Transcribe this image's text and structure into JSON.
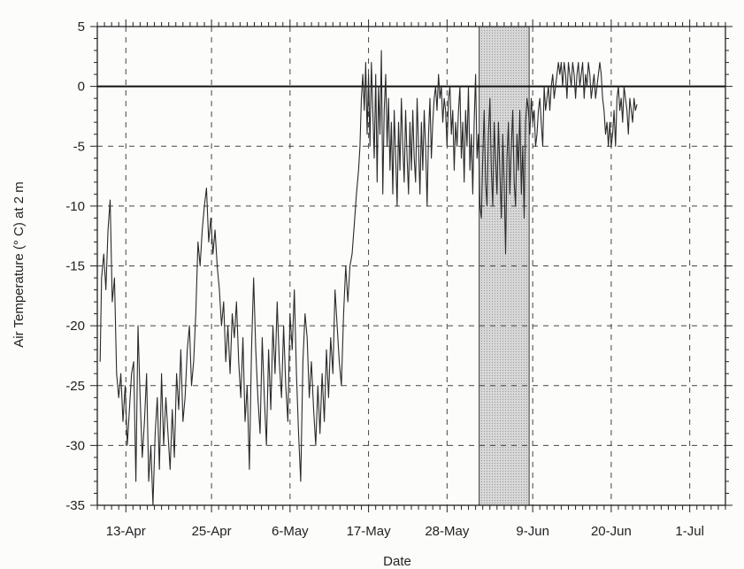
{
  "chart_data": {
    "type": "line",
    "xlabel": "Date",
    "ylabel": "Air Temperature (° C) at 2 m",
    "ylim": [
      -35,
      5
    ],
    "xlim_days": [
      -4,
      84
    ],
    "x_ticks": [
      {
        "day": 0,
        "label": "13-Apr"
      },
      {
        "day": 12,
        "label": "25-Apr"
      },
      {
        "day": 23,
        "label": "6-May"
      },
      {
        "day": 34,
        "label": "17-May"
      },
      {
        "day": 45,
        "label": "28-May"
      },
      {
        "day": 57,
        "label": "9-Jun"
      },
      {
        "day": 68,
        "label": "20-Jun"
      },
      {
        "day": 79,
        "label": "1-Jul"
      }
    ],
    "y_ticks": [
      {
        "value": 5,
        "label": "5"
      },
      {
        "value": 0,
        "label": "0"
      },
      {
        "value": -5,
        "label": "-5"
      },
      {
        "value": -10,
        "label": "-10"
      },
      {
        "value": -15,
        "label": "-15"
      },
      {
        "value": -20,
        "label": "-20"
      },
      {
        "value": -25,
        "label": "-25"
      },
      {
        "value": -30,
        "label": "-30"
      },
      {
        "value": -35,
        "label": "-35"
      }
    ],
    "grid": "dashed",
    "zero_line": true,
    "shaded_interval_days": [
      49.5,
      56.5
    ],
    "series": [
      {
        "values": [
          [
            -3.6,
            -23
          ],
          [
            -3.4,
            -16
          ],
          [
            -3.1,
            -14
          ],
          [
            -2.8,
            -17
          ],
          [
            -2.5,
            -12
          ],
          [
            -2.2,
            -9.5
          ],
          [
            -1.9,
            -18
          ],
          [
            -1.6,
            -16
          ],
          [
            -1.3,
            -24
          ],
          [
            -1.0,
            -26
          ],
          [
            -0.7,
            -24
          ],
          [
            -0.4,
            -28
          ],
          [
            -0.1,
            -25
          ],
          [
            0.2,
            -30
          ],
          [
            0.5,
            -27
          ],
          [
            0.8,
            -24
          ],
          [
            1.1,
            -23
          ],
          [
            1.4,
            -33
          ],
          [
            1.7,
            -20
          ],
          [
            2.0,
            -26
          ],
          [
            2.3,
            -31
          ],
          [
            2.6,
            -28
          ],
          [
            2.9,
            -24
          ],
          [
            3.2,
            -33
          ],
          [
            3.5,
            -30
          ],
          [
            3.8,
            -35
          ],
          [
            4.1,
            -29
          ],
          [
            4.4,
            -26
          ],
          [
            4.7,
            -32
          ],
          [
            5.0,
            -24
          ],
          [
            5.3,
            -30
          ],
          [
            5.6,
            -26
          ],
          [
            5.9,
            -29
          ],
          [
            6.2,
            -32
          ],
          [
            6.5,
            -27
          ],
          [
            6.8,
            -31
          ],
          [
            7.1,
            -24
          ],
          [
            7.4,
            -27
          ],
          [
            7.7,
            -22
          ],
          [
            8.0,
            -28
          ],
          [
            8.3,
            -26
          ],
          [
            8.6,
            -22
          ],
          [
            8.9,
            -20
          ],
          [
            9.2,
            -25
          ],
          [
            9.5,
            -23
          ],
          [
            9.8,
            -19
          ],
          [
            10.1,
            -13
          ],
          [
            10.4,
            -15
          ],
          [
            10.7,
            -12
          ],
          [
            11.0,
            -10
          ],
          [
            11.3,
            -8.5
          ],
          [
            11.6,
            -13
          ],
          [
            11.9,
            -11
          ],
          [
            12.2,
            -14
          ],
          [
            12.5,
            -12
          ],
          [
            12.8,
            -15
          ],
          [
            13.1,
            -17
          ],
          [
            13.4,
            -20
          ],
          [
            13.7,
            -18
          ],
          [
            14.0,
            -23
          ],
          [
            14.3,
            -20
          ],
          [
            14.6,
            -24
          ],
          [
            14.9,
            -19
          ],
          [
            15.2,
            -21
          ],
          [
            15.5,
            -18
          ],
          [
            15.8,
            -23
          ],
          [
            16.1,
            -26
          ],
          [
            16.4,
            -21
          ],
          [
            16.7,
            -28
          ],
          [
            17.0,
            -25
          ],
          [
            17.3,
            -32
          ],
          [
            17.6,
            -22
          ],
          [
            17.9,
            -16
          ],
          [
            18.2,
            -22
          ],
          [
            18.5,
            -26
          ],
          [
            18.8,
            -29
          ],
          [
            19.1,
            -21
          ],
          [
            19.4,
            -26
          ],
          [
            19.7,
            -30
          ],
          [
            20.0,
            -22
          ],
          [
            20.3,
            -27
          ],
          [
            20.6,
            -20
          ],
          [
            20.9,
            -24
          ],
          [
            21.2,
            -18
          ],
          [
            21.5,
            -23
          ],
          [
            21.8,
            -26
          ],
          [
            22.1,
            -20
          ],
          [
            22.4,
            -25
          ],
          [
            22.7,
            -28
          ],
          [
            23.0,
            -19
          ],
          [
            23.3,
            -22
          ],
          [
            23.6,
            -17
          ],
          [
            23.9,
            -24
          ],
          [
            24.2,
            -29
          ],
          [
            24.5,
            -33
          ],
          [
            24.8,
            -23
          ],
          [
            25.1,
            -19
          ],
          [
            25.4,
            -21
          ],
          [
            25.7,
            -26
          ],
          [
            26.0,
            -23
          ],
          [
            26.3,
            -27
          ],
          [
            26.6,
            -30
          ],
          [
            26.9,
            -25
          ],
          [
            27.2,
            -29
          ],
          [
            27.5,
            -24
          ],
          [
            27.8,
            -28
          ],
          [
            28.1,
            -22
          ],
          [
            28.4,
            -26
          ],
          [
            28.7,
            -21
          ],
          [
            29.0,
            -24
          ],
          [
            29.3,
            -17
          ],
          [
            29.6,
            -20
          ],
          [
            29.9,
            -23
          ],
          [
            30.2,
            -25
          ],
          [
            30.5,
            -19
          ],
          [
            30.8,
            -15
          ],
          [
            31.1,
            -18
          ],
          [
            31.4,
            -15
          ],
          [
            31.7,
            -14
          ],
          [
            32.0,
            -11.5
          ],
          [
            32.3,
            -9
          ],
          [
            32.6,
            -7
          ],
          [
            32.8,
            -5
          ],
          [
            33.0,
            -1
          ],
          [
            33.2,
            1
          ],
          [
            33.4,
            -2
          ],
          [
            33.6,
            2
          ],
          [
            33.8,
            -4
          ],
          [
            34.0,
            1
          ],
          [
            34.2,
            -5
          ],
          [
            34.4,
            2
          ],
          [
            34.6,
            -2
          ],
          [
            34.8,
            -6
          ],
          [
            35.0,
            1
          ],
          [
            35.2,
            -8
          ],
          [
            35.4,
            0
          ],
          [
            35.6,
            -4
          ],
          [
            35.8,
            3
          ],
          [
            36.0,
            -9
          ],
          [
            36.2,
            -2
          ],
          [
            36.4,
            1
          ],
          [
            36.6,
            -5
          ],
          [
            36.8,
            -1
          ],
          [
            37.0,
            -7
          ],
          [
            37.2,
            -3
          ],
          [
            37.4,
            -9
          ],
          [
            37.6,
            -2
          ],
          [
            37.8,
            -6
          ],
          [
            38.0,
            -10
          ],
          [
            38.2,
            -3
          ],
          [
            38.4,
            -7
          ],
          [
            38.6,
            -1
          ],
          [
            38.8,
            -5
          ],
          [
            39.0,
            -8
          ],
          [
            39.2,
            -2
          ],
          [
            39.4,
            -6
          ],
          [
            39.6,
            -9
          ],
          [
            39.8,
            -3
          ],
          [
            40.0,
            -7
          ],
          [
            40.2,
            -2
          ],
          [
            40.4,
            -6
          ],
          [
            40.6,
            -8
          ],
          [
            40.8,
            -1
          ],
          [
            41.0,
            -5
          ],
          [
            41.2,
            -9
          ],
          [
            41.4,
            -3
          ],
          [
            41.6,
            -7
          ],
          [
            41.8,
            -2
          ],
          [
            42.0,
            -5
          ],
          [
            42.2,
            -10
          ],
          [
            42.4,
            -4
          ],
          [
            42.6,
            -1
          ],
          [
            42.8,
            -6
          ],
          [
            43.0,
            -3
          ],
          [
            43.2,
            -1
          ],
          [
            43.4,
            0
          ],
          [
            43.6,
            -2
          ],
          [
            43.8,
            1
          ],
          [
            44.0,
            -1
          ],
          [
            44.2,
            0
          ],
          [
            44.4,
            -3
          ],
          [
            44.6,
            -1
          ],
          [
            44.8,
            -2
          ],
          [
            45.0,
            -5
          ],
          [
            45.2,
            -1
          ],
          [
            45.4,
            0
          ],
          [
            45.6,
            -4
          ],
          [
            45.8,
            -2
          ],
          [
            46.0,
            -7
          ],
          [
            46.2,
            -3
          ],
          [
            46.4,
            -5
          ],
          [
            46.6,
            -2
          ],
          [
            46.8,
            0
          ],
          [
            47.0,
            -6
          ],
          [
            47.2,
            -3
          ],
          [
            47.4,
            -8
          ],
          [
            47.6,
            -2
          ],
          [
            47.8,
            -5
          ],
          [
            48.0,
            0
          ],
          [
            48.2,
            -7
          ],
          [
            48.4,
            -4
          ],
          [
            48.6,
            -9
          ],
          [
            48.8,
            -3
          ],
          [
            49.0,
            1
          ],
          [
            49.2,
            -6
          ],
          [
            49.4,
            -4
          ],
          [
            49.6,
            -10
          ],
          [
            49.8,
            -11
          ],
          [
            50.0,
            -6
          ],
          [
            50.2,
            -2
          ],
          [
            50.4,
            -8
          ],
          [
            50.6,
            -10
          ],
          [
            50.8,
            -4
          ],
          [
            51.0,
            -1
          ],
          [
            51.2,
            -7
          ],
          [
            51.4,
            -10
          ],
          [
            51.6,
            -3
          ],
          [
            51.8,
            -6
          ],
          [
            52.0,
            -9
          ],
          [
            52.2,
            -3
          ],
          [
            52.4,
            -7
          ],
          [
            52.6,
            -11
          ],
          [
            52.8,
            -4
          ],
          [
            53.0,
            -8
          ],
          [
            53.2,
            -14
          ],
          [
            53.4,
            -6
          ],
          [
            53.6,
            -3
          ],
          [
            53.8,
            -9
          ],
          [
            54.0,
            -5
          ],
          [
            54.2,
            -2
          ],
          [
            54.4,
            -8
          ],
          [
            54.6,
            -10
          ],
          [
            54.8,
            -4
          ],
          [
            55.0,
            -7
          ],
          [
            55.2,
            -2
          ],
          [
            55.4,
            -9
          ],
          [
            55.6,
            -5
          ],
          [
            55.8,
            -11
          ],
          [
            56.0,
            -3
          ],
          [
            56.2,
            -1
          ],
          [
            56.4,
            -2
          ],
          [
            56.6,
            -4
          ],
          [
            56.8,
            -1
          ],
          [
            57.0,
            -3
          ],
          [
            57.2,
            -2
          ],
          [
            57.4,
            -5
          ],
          [
            57.6,
            -4
          ],
          [
            57.8,
            -2
          ],
          [
            58.0,
            -1
          ],
          [
            58.2,
            -3
          ],
          [
            58.4,
            -5
          ],
          [
            58.6,
            0
          ],
          [
            58.8,
            -2
          ],
          [
            59.0,
            -1
          ],
          [
            59.2,
            0
          ],
          [
            59.4,
            -2
          ],
          [
            59.6,
            0
          ],
          [
            59.8,
            1
          ],
          [
            60.0,
            -1
          ],
          [
            60.2,
            0
          ],
          [
            60.4,
            1
          ],
          [
            60.6,
            2
          ],
          [
            60.8,
            1
          ],
          [
            61.0,
            2
          ],
          [
            61.2,
            0
          ],
          [
            61.4,
            2
          ],
          [
            61.6,
            1
          ],
          [
            61.8,
            -1
          ],
          [
            62.0,
            2
          ],
          [
            62.2,
            1
          ],
          [
            62.4,
            0
          ],
          [
            62.6,
            2
          ],
          [
            62.8,
            1
          ],
          [
            63.0,
            -1
          ],
          [
            63.2,
            1
          ],
          [
            63.4,
            2
          ],
          [
            63.6,
            0
          ],
          [
            63.8,
            1
          ],
          [
            64.0,
            2
          ],
          [
            64.2,
            -1
          ],
          [
            64.4,
            1
          ],
          [
            64.6,
            0
          ],
          [
            64.8,
            2
          ],
          [
            65.0,
            1
          ],
          [
            65.2,
            -1
          ],
          [
            65.4,
            0
          ],
          [
            65.6,
            1
          ],
          [
            65.8,
            -1
          ],
          [
            66.0,
            0
          ],
          [
            66.2,
            1
          ],
          [
            66.4,
            2
          ],
          [
            66.6,
            1
          ],
          [
            66.8,
            -1
          ],
          [
            67.0,
            -2
          ],
          [
            67.2,
            -4
          ],
          [
            67.4,
            -3
          ],
          [
            67.6,
            -5
          ],
          [
            67.8,
            -3
          ],
          [
            68.0,
            -5
          ],
          [
            68.2,
            -4
          ],
          [
            68.4,
            -2
          ],
          [
            68.6,
            -5
          ],
          [
            68.8,
            -1
          ],
          [
            69.0,
            0
          ],
          [
            69.2,
            -2
          ],
          [
            69.4,
            -1
          ],
          [
            69.6,
            -3
          ],
          [
            69.8,
            0
          ],
          [
            70.0,
            -1
          ],
          [
            70.2,
            -2
          ],
          [
            70.4,
            -4
          ],
          [
            70.6,
            -1
          ],
          [
            70.8,
            -2
          ],
          [
            71.0,
            -3
          ],
          [
            71.2,
            -1
          ],
          [
            71.4,
            -2
          ],
          [
            71.6,
            -1.5
          ]
        ]
      }
    ]
  }
}
